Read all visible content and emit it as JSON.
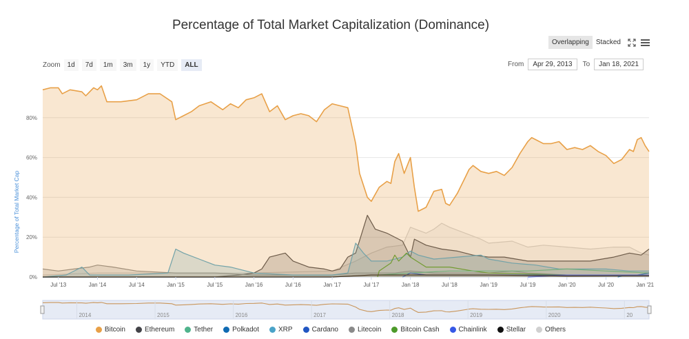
{
  "chart_data": {
    "type": "area",
    "title": "Percentage of Total Market Capitalization (Dominance)",
    "ylabel": "Percentage of Total Market Cap",
    "ylim": [
      0,
      100
    ],
    "yticks": [
      "0%",
      "20%",
      "40%",
      "60%",
      "80%"
    ],
    "ytick_values": [
      0,
      20,
      40,
      60,
      80
    ],
    "xlim": [
      2013.3,
      2021.05
    ],
    "xticks": [
      "Jul '13",
      "Jan '14",
      "Jul '14",
      "Jan '15",
      "Jul '15",
      "Jan '16",
      "Jul '16",
      "Jan '17",
      "Jul '17",
      "Jan '18",
      "Jul '18",
      "Jan '19",
      "Jul '19",
      "Jan '20",
      "Jul '20",
      "Jan '21"
    ],
    "xtick_values": [
      2013.5,
      2014.0,
      2014.5,
      2015.0,
      2015.5,
      2016.0,
      2016.5,
      2017.0,
      2017.5,
      2018.0,
      2018.5,
      2019.0,
      2019.5,
      2020.0,
      2020.5,
      2021.0
    ],
    "navigator_years": [
      "2014",
      "2015",
      "2016",
      "2017",
      "2018",
      "2019",
      "2020",
      "20"
    ],
    "navigator_year_values": [
      2014.0,
      2015.0,
      2016.0,
      2017.0,
      2018.0,
      2019.0,
      2020.0,
      2021.0
    ],
    "legend_position": "bottom",
    "grid": true,
    "series": [
      {
        "name": "Others",
        "color": "#d0d0d0",
        "fill": true,
        "points": [
          [
            2013.3,
            1
          ],
          [
            2014.0,
            2
          ],
          [
            2015.0,
            2
          ],
          [
            2016.0,
            2
          ],
          [
            2017.0,
            3
          ],
          [
            2017.3,
            8
          ],
          [
            2017.5,
            12
          ],
          [
            2017.7,
            15
          ],
          [
            2017.9,
            16
          ],
          [
            2018.0,
            25
          ],
          [
            2018.2,
            22
          ],
          [
            2018.3,
            24
          ],
          [
            2018.4,
            27
          ],
          [
            2018.5,
            25
          ],
          [
            2018.7,
            22
          ],
          [
            2018.9,
            19
          ],
          [
            2019.0,
            17
          ],
          [
            2019.3,
            18
          ],
          [
            2019.5,
            15
          ],
          [
            2019.7,
            16
          ],
          [
            2020.0,
            15
          ],
          [
            2020.3,
            14
          ],
          [
            2020.6,
            15
          ],
          [
            2020.8,
            15
          ],
          [
            2020.95,
            12
          ],
          [
            2021.05,
            11
          ]
        ]
      },
      {
        "name": "Ethereum",
        "color": "#434348",
        "fill": true,
        "points": [
          [
            2013.3,
            0
          ],
          [
            2015.5,
            0
          ],
          [
            2015.8,
            1
          ],
          [
            2016.0,
            2
          ],
          [
            2016.1,
            4
          ],
          [
            2016.2,
            10
          ],
          [
            2016.4,
            12
          ],
          [
            2016.5,
            8
          ],
          [
            2016.7,
            5
          ],
          [
            2016.9,
            4
          ],
          [
            2017.0,
            3
          ],
          [
            2017.1,
            4
          ],
          [
            2017.2,
            10
          ],
          [
            2017.3,
            12
          ],
          [
            2017.45,
            31
          ],
          [
            2017.55,
            24
          ],
          [
            2017.7,
            22
          ],
          [
            2017.9,
            18
          ],
          [
            2018.0,
            10
          ],
          [
            2018.05,
            19
          ],
          [
            2018.2,
            16
          ],
          [
            2018.4,
            14
          ],
          [
            2018.6,
            13
          ],
          [
            2018.8,
            11
          ],
          [
            2019.0,
            10
          ],
          [
            2019.2,
            10
          ],
          [
            2019.5,
            8
          ],
          [
            2019.8,
            8
          ],
          [
            2020.0,
            8
          ],
          [
            2020.3,
            8
          ],
          [
            2020.6,
            10
          ],
          [
            2020.8,
            12
          ],
          [
            2020.95,
            11
          ],
          [
            2021.05,
            14
          ]
        ]
      },
      {
        "name": "Litecoin",
        "color": "#8a8a8a",
        "fill": true,
        "points": [
          [
            2013.3,
            4
          ],
          [
            2013.5,
            3
          ],
          [
            2013.7,
            4
          ],
          [
            2013.9,
            5
          ],
          [
            2014.0,
            6
          ],
          [
            2014.2,
            5
          ],
          [
            2014.5,
            3
          ],
          [
            2015.0,
            2
          ],
          [
            2015.5,
            2
          ],
          [
            2016.0,
            1
          ],
          [
            2017.0,
            1
          ],
          [
            2017.3,
            2
          ],
          [
            2017.5,
            2
          ],
          [
            2017.8,
            2
          ],
          [
            2018.0,
            3
          ],
          [
            2018.3,
            2
          ],
          [
            2019.0,
            2
          ],
          [
            2019.3,
            3
          ],
          [
            2019.5,
            2
          ],
          [
            2020.0,
            1
          ],
          [
            2021.05,
            1
          ]
        ]
      },
      {
        "name": "XRP",
        "color": "#4aa3c8",
        "fill": true,
        "points": [
          [
            2013.3,
            0
          ],
          [
            2013.6,
            1
          ],
          [
            2013.8,
            5
          ],
          [
            2013.9,
            1
          ],
          [
            2014.4,
            1
          ],
          [
            2014.9,
            2
          ],
          [
            2015.0,
            14
          ],
          [
            2015.1,
            12
          ],
          [
            2015.3,
            9
          ],
          [
            2015.5,
            6
          ],
          [
            2015.7,
            5
          ],
          [
            2015.9,
            3
          ],
          [
            2016.0,
            2
          ],
          [
            2016.5,
            1
          ],
          [
            2017.0,
            1
          ],
          [
            2017.2,
            2
          ],
          [
            2017.3,
            17
          ],
          [
            2017.4,
            12
          ],
          [
            2017.5,
            8
          ],
          [
            2017.7,
            8
          ],
          [
            2017.9,
            10
          ],
          [
            2018.0,
            13
          ],
          [
            2018.1,
            11
          ],
          [
            2018.3,
            9
          ],
          [
            2018.6,
            10
          ],
          [
            2018.9,
            11
          ],
          [
            2019.0,
            9
          ],
          [
            2019.3,
            7
          ],
          [
            2019.6,
            6
          ],
          [
            2019.9,
            4
          ],
          [
            2020.0,
            4
          ],
          [
            2020.5,
            4
          ],
          [
            2020.8,
            3
          ],
          [
            2021.05,
            3
          ]
        ]
      },
      {
        "name": "Bitcoin Cash",
        "color": "#4c9a2a",
        "fill": false,
        "points": [
          [
            2017.58,
            0
          ],
          [
            2017.6,
            3
          ],
          [
            2017.75,
            7
          ],
          [
            2017.8,
            11
          ],
          [
            2017.85,
            8
          ],
          [
            2017.95,
            12
          ],
          [
            2018.0,
            10
          ],
          [
            2018.2,
            5
          ],
          [
            2018.5,
            5
          ],
          [
            2018.8,
            3
          ],
          [
            2019.0,
            2
          ],
          [
            2020.0,
            1
          ],
          [
            2021.05,
            1
          ]
        ]
      },
      {
        "name": "Tether",
        "color": "#4fb38c",
        "fill": false,
        "points": [
          [
            2017.6,
            1
          ],
          [
            2018.0,
            2
          ],
          [
            2018.5,
            3
          ],
          [
            2019.0,
            3
          ],
          [
            2019.5,
            3
          ],
          [
            2020.0,
            4
          ],
          [
            2020.5,
            3
          ],
          [
            2021.05,
            2
          ]
        ]
      },
      {
        "name": "Polkadot",
        "color": "#0f6ab2",
        "fill": false,
        "points": [
          [
            2020.65,
            0
          ],
          [
            2020.75,
            1
          ],
          [
            2020.9,
            1
          ],
          [
            2021.05,
            2
          ]
        ]
      },
      {
        "name": "Cardano",
        "color": "#2156c2",
        "fill": false,
        "points": [
          [
            2017.9,
            0
          ],
          [
            2018.0,
            2
          ],
          [
            2018.2,
            1
          ],
          [
            2019.0,
            1
          ],
          [
            2020.0,
            1
          ],
          [
            2021.05,
            1
          ]
        ]
      },
      {
        "name": "Chainlink",
        "color": "#3658e6",
        "fill": false,
        "points": [
          [
            2019.5,
            0
          ],
          [
            2020.0,
            1
          ],
          [
            2020.5,
            1
          ],
          [
            2021.05,
            1
          ]
        ]
      },
      {
        "name": "Stellar",
        "color": "#111111",
        "fill": false,
        "points": [
          [
            2013.3,
            0
          ],
          [
            2017.0,
            0
          ],
          [
            2017.5,
            1
          ],
          [
            2018.0,
            1
          ],
          [
            2019.0,
            1
          ],
          [
            2020.0,
            0.5
          ],
          [
            2021.05,
            0.6
          ]
        ]
      },
      {
        "name": "Bitcoin",
        "color": "#e8a047",
        "fill": true,
        "points": [
          [
            2013.3,
            94
          ],
          [
            2013.4,
            95
          ],
          [
            2013.5,
            95
          ],
          [
            2013.55,
            92
          ],
          [
            2013.65,
            94
          ],
          [
            2013.8,
            93
          ],
          [
            2013.85,
            91
          ],
          [
            2013.95,
            95
          ],
          [
            2014.0,
            94
          ],
          [
            2014.05,
            96
          ],
          [
            2014.12,
            88
          ],
          [
            2014.3,
            88
          ],
          [
            2014.5,
            89
          ],
          [
            2014.65,
            92
          ],
          [
            2014.8,
            92
          ],
          [
            2014.95,
            88
          ],
          [
            2015.0,
            79
          ],
          [
            2015.1,
            81
          ],
          [
            2015.2,
            83
          ],
          [
            2015.3,
            86
          ],
          [
            2015.45,
            88
          ],
          [
            2015.6,
            84
          ],
          [
            2015.7,
            87
          ],
          [
            2015.8,
            85
          ],
          [
            2015.9,
            89
          ],
          [
            2016.0,
            90
          ],
          [
            2016.1,
            92
          ],
          [
            2016.2,
            83
          ],
          [
            2016.3,
            86
          ],
          [
            2016.4,
            79
          ],
          [
            2016.5,
            81
          ],
          [
            2016.6,
            82
          ],
          [
            2016.7,
            81
          ],
          [
            2016.8,
            78
          ],
          [
            2016.9,
            84
          ],
          [
            2017.0,
            87
          ],
          [
            2017.1,
            86
          ],
          [
            2017.2,
            85
          ],
          [
            2017.3,
            67
          ],
          [
            2017.35,
            52
          ],
          [
            2017.45,
            40
          ],
          [
            2017.5,
            38
          ],
          [
            2017.6,
            45
          ],
          [
            2017.7,
            48
          ],
          [
            2017.75,
            47
          ],
          [
            2017.8,
            58
          ],
          [
            2017.85,
            62
          ],
          [
            2017.92,
            52
          ],
          [
            2018.0,
            60
          ],
          [
            2018.05,
            45
          ],
          [
            2018.1,
            33
          ],
          [
            2018.2,
            35
          ],
          [
            2018.3,
            43
          ],
          [
            2018.4,
            44
          ],
          [
            2018.45,
            37
          ],
          [
            2018.5,
            36
          ],
          [
            2018.6,
            42
          ],
          [
            2018.7,
            50
          ],
          [
            2018.75,
            54
          ],
          [
            2018.8,
            56
          ],
          [
            2018.9,
            53
          ],
          [
            2019.0,
            52
          ],
          [
            2019.1,
            53
          ],
          [
            2019.2,
            51
          ],
          [
            2019.3,
            55
          ],
          [
            2019.4,
            62
          ],
          [
            2019.5,
            68
          ],
          [
            2019.55,
            70
          ],
          [
            2019.6,
            69
          ],
          [
            2019.7,
            67
          ],
          [
            2019.8,
            67
          ],
          [
            2019.9,
            68
          ],
          [
            2020.0,
            64
          ],
          [
            2020.1,
            65
          ],
          [
            2020.2,
            64
          ],
          [
            2020.3,
            66
          ],
          [
            2020.4,
            63
          ],
          [
            2020.5,
            61
          ],
          [
            2020.6,
            57
          ],
          [
            2020.7,
            59
          ],
          [
            2020.8,
            64
          ],
          [
            2020.85,
            63
          ],
          [
            2020.9,
            69
          ],
          [
            2020.95,
            70
          ],
          [
            2021.0,
            66
          ],
          [
            2021.05,
            63
          ]
        ]
      }
    ],
    "legend": [
      {
        "name": "Bitcoin",
        "color": "#e8a047"
      },
      {
        "name": "Ethereum",
        "color": "#434348"
      },
      {
        "name": "Tether",
        "color": "#4fb38c"
      },
      {
        "name": "Polkadot",
        "color": "#0f6ab2"
      },
      {
        "name": "XRP",
        "color": "#4aa3c8"
      },
      {
        "name": "Cardano",
        "color": "#2156c2"
      },
      {
        "name": "Litecoin",
        "color": "#8a8a8a"
      },
      {
        "name": "Bitcoin Cash",
        "color": "#4c9a2a"
      },
      {
        "name": "Chainlink",
        "color": "#3658e6"
      },
      {
        "name": "Stellar",
        "color": "#111111"
      },
      {
        "name": "Others",
        "color": "#d0d0d0"
      }
    ]
  },
  "controls": {
    "mode_buttons": [
      "Overlapping",
      "Stacked"
    ],
    "active_mode": "Overlapping",
    "zoom_label": "Zoom",
    "zoom_buttons": [
      "1d",
      "7d",
      "1m",
      "3m",
      "1y",
      "YTD",
      "ALL"
    ],
    "active_zoom": "ALL",
    "from_label": "From",
    "from_value": "Apr 29, 2013",
    "to_label": "To",
    "to_value": "Jan 18, 2021",
    "fullscreen_icon": "fullscreen-icon",
    "menu_icon": "hamburger-menu-icon"
  }
}
